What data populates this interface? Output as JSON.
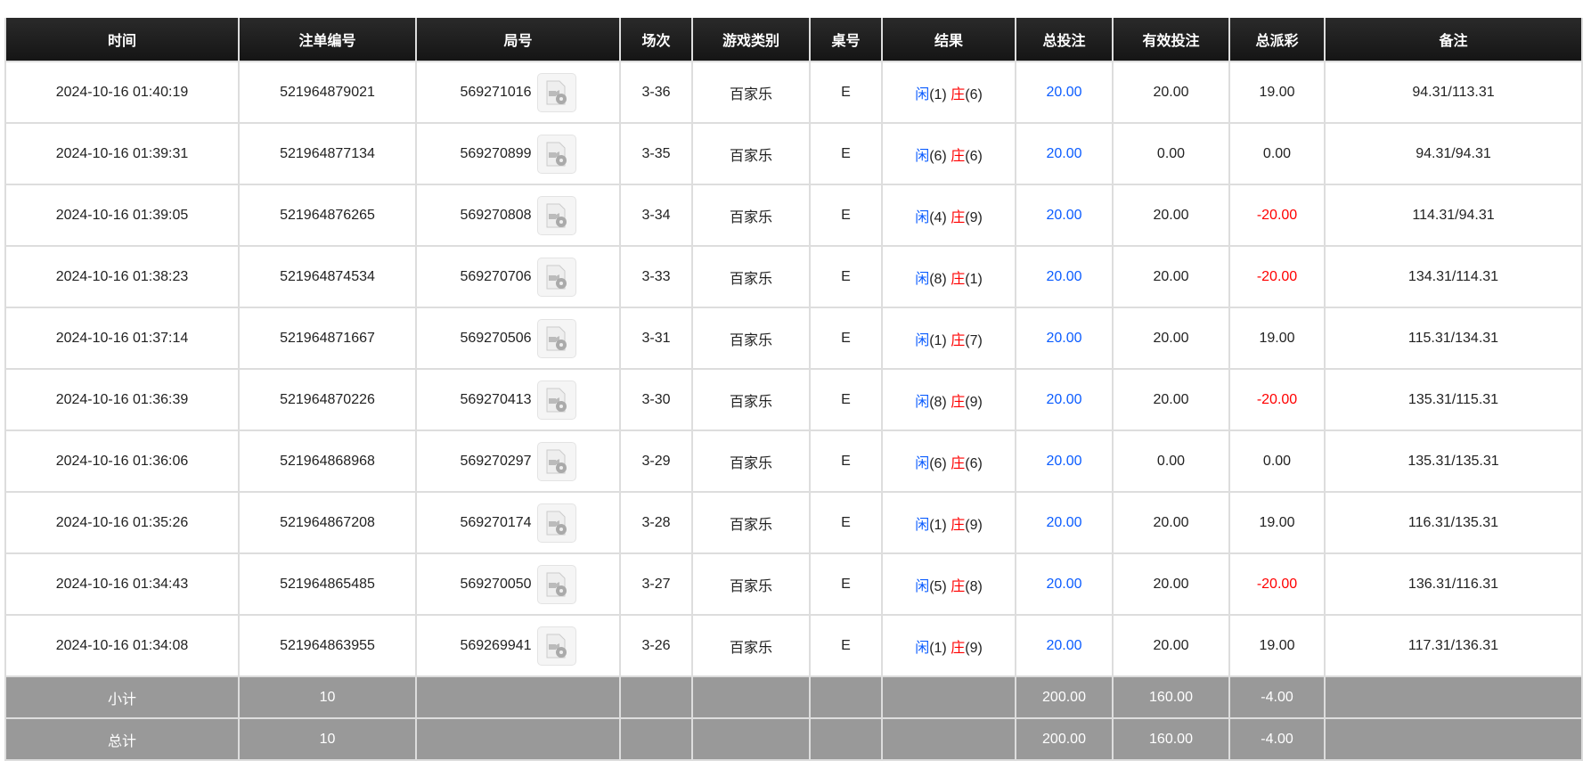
{
  "headers": [
    "时间",
    "注单编号",
    "局号",
    "场次",
    "游戏类别",
    "桌号",
    "结果",
    "总投注",
    "有效投注",
    "总派彩",
    "备注"
  ],
  "rows": [
    {
      "time": "2024-10-16 01:40:19",
      "bet_id": "521964879021",
      "round": "569271016",
      "session": "3-36",
      "game": "百家乐",
      "table": "E",
      "player": "闲",
      "player_pts": "(1)",
      "banker": "庄",
      "banker_pts": "(6)",
      "total_bet": "20.00",
      "valid_bet": "20.00",
      "payout": "19.00",
      "payout_negative": false,
      "note": "94.31/113.31"
    },
    {
      "time": "2024-10-16 01:39:31",
      "bet_id": "521964877134",
      "round": "569270899",
      "session": "3-35",
      "game": "百家乐",
      "table": "E",
      "player": "闲",
      "player_pts": "(6)",
      "banker": "庄",
      "banker_pts": "(6)",
      "total_bet": "20.00",
      "valid_bet": "0.00",
      "payout": "0.00",
      "payout_negative": false,
      "note": "94.31/94.31"
    },
    {
      "time": "2024-10-16 01:39:05",
      "bet_id": "521964876265",
      "round": "569270808",
      "session": "3-34",
      "game": "百家乐",
      "table": "E",
      "player": "闲",
      "player_pts": "(4)",
      "banker": "庄",
      "banker_pts": "(9)",
      "total_bet": "20.00",
      "valid_bet": "20.00",
      "payout": "-20.00",
      "payout_negative": true,
      "note": "114.31/94.31"
    },
    {
      "time": "2024-10-16 01:38:23",
      "bet_id": "521964874534",
      "round": "569270706",
      "session": "3-33",
      "game": "百家乐",
      "table": "E",
      "player": "闲",
      "player_pts": "(8)",
      "banker": "庄",
      "banker_pts": "(1)",
      "total_bet": "20.00",
      "valid_bet": "20.00",
      "payout": "-20.00",
      "payout_negative": true,
      "note": "134.31/114.31"
    },
    {
      "time": "2024-10-16 01:37:14",
      "bet_id": "521964871667",
      "round": "569270506",
      "session": "3-31",
      "game": "百家乐",
      "table": "E",
      "player": "闲",
      "player_pts": "(1)",
      "banker": "庄",
      "banker_pts": "(7)",
      "total_bet": "20.00",
      "valid_bet": "20.00",
      "payout": "19.00",
      "payout_negative": false,
      "note": "115.31/134.31"
    },
    {
      "time": "2024-10-16 01:36:39",
      "bet_id": "521964870226",
      "round": "569270413",
      "session": "3-30",
      "game": "百家乐",
      "table": "E",
      "player": "闲",
      "player_pts": "(8)",
      "banker": "庄",
      "banker_pts": "(9)",
      "total_bet": "20.00",
      "valid_bet": "20.00",
      "payout": "-20.00",
      "payout_negative": true,
      "note": "135.31/115.31"
    },
    {
      "time": "2024-10-16 01:36:06",
      "bet_id": "521964868968",
      "round": "569270297",
      "session": "3-29",
      "game": "百家乐",
      "table": "E",
      "player": "闲",
      "player_pts": "(6)",
      "banker": "庄",
      "banker_pts": "(6)",
      "total_bet": "20.00",
      "valid_bet": "0.00",
      "payout": "0.00",
      "payout_negative": false,
      "note": "135.31/135.31"
    },
    {
      "time": "2024-10-16 01:35:26",
      "bet_id": "521964867208",
      "round": "569270174",
      "session": "3-28",
      "game": "百家乐",
      "table": "E",
      "player": "闲",
      "player_pts": "(1)",
      "banker": "庄",
      "banker_pts": "(9)",
      "total_bet": "20.00",
      "valid_bet": "20.00",
      "payout": "19.00",
      "payout_negative": false,
      "note": "116.31/135.31"
    },
    {
      "time": "2024-10-16 01:34:43",
      "bet_id": "521964865485",
      "round": "569270050",
      "session": "3-27",
      "game": "百家乐",
      "table": "E",
      "player": "闲",
      "player_pts": "(5)",
      "banker": "庄",
      "banker_pts": "(8)",
      "total_bet": "20.00",
      "valid_bet": "20.00",
      "payout": "-20.00",
      "payout_negative": true,
      "note": "136.31/116.31"
    },
    {
      "time": "2024-10-16 01:34:08",
      "bet_id": "521964863955",
      "round": "569269941",
      "session": "3-26",
      "game": "百家乐",
      "table": "E",
      "player": "闲",
      "player_pts": "(1)",
      "banker": "庄",
      "banker_pts": "(9)",
      "total_bet": "20.00",
      "valid_bet": "20.00",
      "payout": "19.00",
      "payout_negative": false,
      "note": "117.31/136.31"
    }
  ],
  "subtotal": {
    "label": "小计",
    "count": "10",
    "total_bet": "200.00",
    "valid_bet": "160.00",
    "payout": "-4.00"
  },
  "total": {
    "label": "总计",
    "count": "10",
    "total_bet": "200.00",
    "valid_bet": "160.00",
    "payout": "-4.00"
  },
  "colors": {
    "player": "#0b5cff",
    "banker": "#ff0000",
    "header_bg": "#1a1a1a",
    "summary_bg": "#999999"
  },
  "icons": {
    "replay": "video-file-icon"
  }
}
